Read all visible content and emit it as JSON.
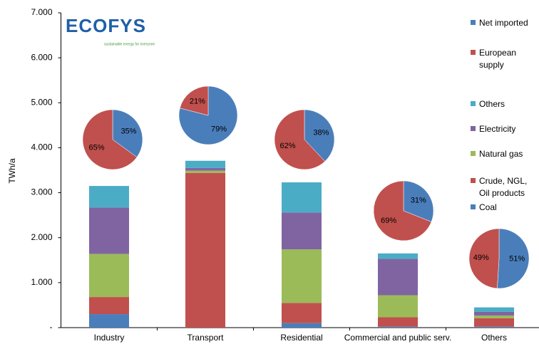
{
  "logo": {
    "name": "ECOFYS",
    "tagline": "sustainable energy for everyone"
  },
  "chart_data": [
    {
      "type": "bar",
      "stacked": true,
      "ylabel": "TWh/a",
      "categories": [
        "Industry",
        "Transport",
        "Residential",
        "Commercial and public serv.",
        "Others"
      ],
      "series": [
        {
          "name": "Coal",
          "color": "#4a7ebb",
          "values": [
            300,
            0,
            100,
            20,
            20
          ]
        },
        {
          "name": "Crude, NGL, Oil products",
          "color": "#c0504d",
          "values": [
            380,
            3440,
            450,
            210,
            190
          ]
        },
        {
          "name": "Natural gas",
          "color": "#9bbb59",
          "values": [
            960,
            50,
            1190,
            490,
            60
          ]
        },
        {
          "name": "Electricity",
          "color": "#8064a2",
          "values": [
            1030,
            60,
            820,
            810,
            80
          ]
        },
        {
          "name": "Others",
          "color": "#4bacc6",
          "values": [
            480,
            160,
            670,
            120,
            100
          ]
        }
      ],
      "ylim": [
        0,
        7000
      ],
      "yticks": [
        {
          "value": 0,
          "label": "-"
        },
        {
          "value": 1000,
          "label": "1.000"
        },
        {
          "value": 2000,
          "label": "2.000"
        },
        {
          "value": 3000,
          "label": "3.000"
        },
        {
          "value": 4000,
          "label": "4.000"
        },
        {
          "value": 5000,
          "label": "5.000"
        },
        {
          "value": 6000,
          "label": "6.000"
        },
        {
          "value": 7000,
          "label": "7.000"
        }
      ]
    },
    {
      "type": "pie",
      "series": [
        {
          "name": "Net imported",
          "color": "#4a7ebb",
          "values": [
            35,
            79,
            38,
            31,
            51
          ],
          "value_labels": [
            "35%",
            "79%",
            "38%",
            "31%",
            "51%"
          ]
        },
        {
          "name": "European supply",
          "color": "#c0504d",
          "values": [
            65,
            21,
            62,
            69,
            49
          ],
          "value_labels": [
            "65%",
            "21%",
            "62%",
            "69%",
            "49%"
          ]
        }
      ]
    }
  ]
}
